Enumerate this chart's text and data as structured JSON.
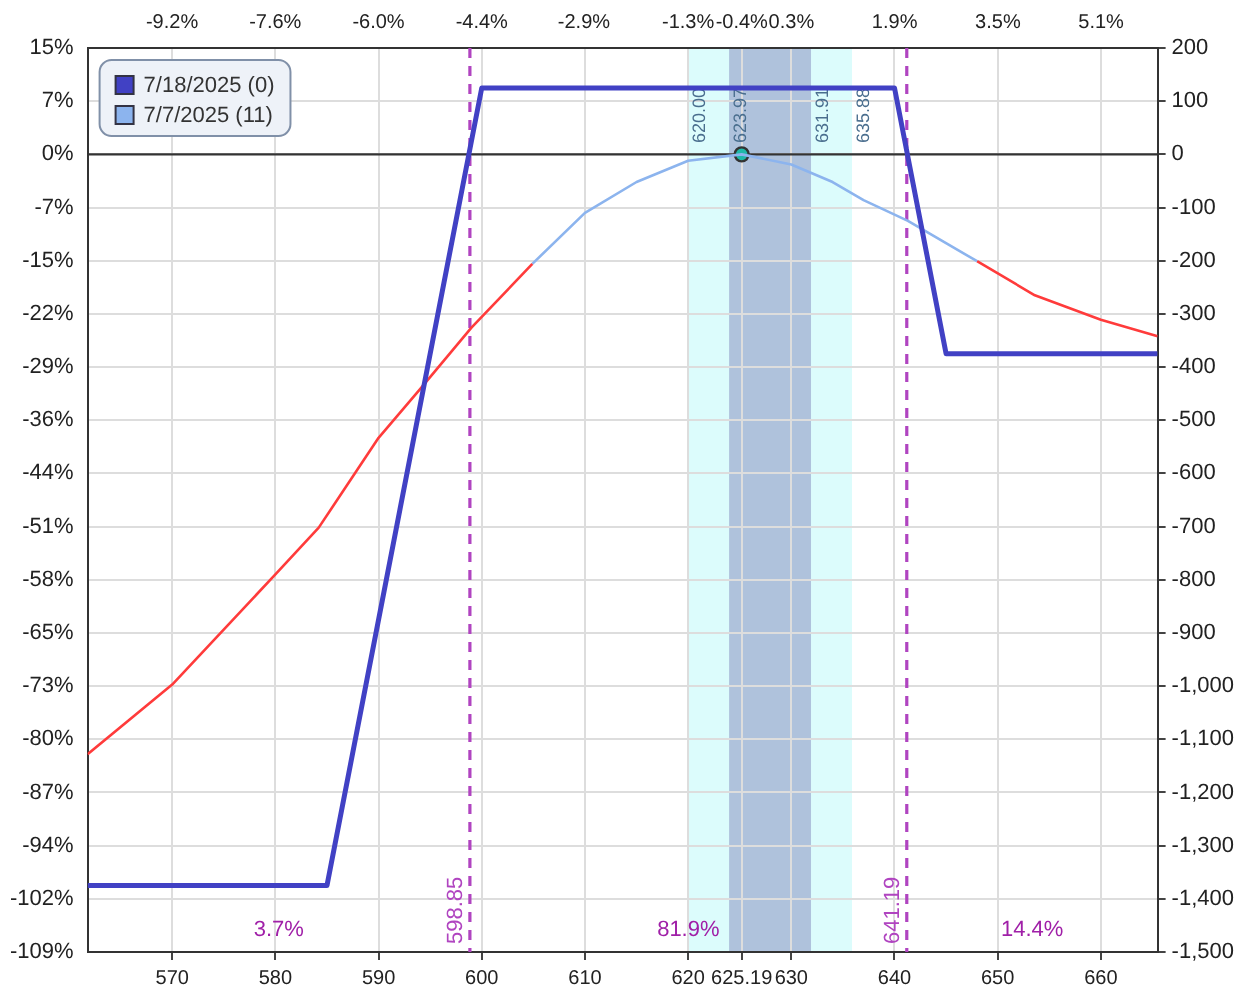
{
  "chart_data": {
    "type": "line",
    "xlim": [
      561.8,
      665.5
    ],
    "xticks": [
      570,
      580,
      590,
      600,
      610,
      620,
      {
        "value": 625.19,
        "label": "625.19"
      },
      630,
      640,
      650,
      660
    ],
    "x2lim": [
      -10.5,
      5.97
    ],
    "x2ticks": [
      {
        "value": -9.2,
        "label": "-9.2%"
      },
      {
        "value": -7.611,
        "label": "-7.6%"
      },
      {
        "value": -6.022,
        "label": "-6.0%"
      },
      {
        "value": -4.433,
        "label": "-4.4%"
      },
      {
        "value": -2.86,
        "label": "-2.9%"
      },
      {
        "value": -1.256,
        "label": "-1.3%"
      },
      {
        "value": -0.431,
        "label": "-0.4%"
      },
      {
        "value": 0.333,
        "label": "0.3%"
      },
      {
        "value": 1.922,
        "label": "1.9%"
      },
      {
        "value": 3.511,
        "label": "3.5%"
      },
      {
        "value": 5.1,
        "label": "5.1%"
      }
    ],
    "ylim": [
      -109,
      14.53
    ],
    "yticks": [
      {
        "value": 14.53,
        "label": "15%"
      },
      {
        "value": 7.27,
        "label": "7%"
      },
      {
        "value": 0,
        "label": "0%"
      },
      {
        "value": -7.27,
        "label": "-7%"
      },
      {
        "value": -14.53,
        "label": "-15%"
      },
      {
        "value": -21.8,
        "label": "-22%"
      },
      {
        "value": -29.07,
        "label": "-29%"
      },
      {
        "value": -36.33,
        "label": "-36%"
      },
      {
        "value": -43.6,
        "label": "-44%"
      },
      {
        "value": -50.87,
        "label": "-51%"
      },
      {
        "value": -58.13,
        "label": "-58%"
      },
      {
        "value": -65.4,
        "label": "-65%"
      },
      {
        "value": -72.67,
        "label": "-73%"
      },
      {
        "value": -79.93,
        "label": "-80%"
      },
      {
        "value": -87.2,
        "label": "-87%"
      },
      {
        "value": -94.47,
        "label": "-94%"
      },
      {
        "value": -101.73,
        "label": "-102%"
      },
      {
        "value": -109,
        "label": "-109%"
      }
    ],
    "y2lim": [
      -1500,
      200
    ],
    "y2ticks": [
      200,
      100,
      0,
      -100,
      -200,
      -300,
      -400,
      -500,
      -600,
      -700,
      -800,
      -900,
      {
        "value": -1000,
        "label": "-1,000"
      },
      {
        "value": -1100,
        "label": "-1,100"
      },
      {
        "value": -1200,
        "label": "-1,200"
      },
      {
        "value": -1300,
        "label": "-1,300"
      },
      {
        "value": -1400,
        "label": "-1,400"
      },
      {
        "value": -1500,
        "label": "-1,500"
      }
    ],
    "grid": true,
    "legend": "top left",
    "line_style": "solid",
    "series": [
      {
        "name": "7/18/2025 (0)",
        "color": "#4141c4",
        "axis": "y2",
        "x": [
          561.8,
          585,
          600,
          640,
          645,
          665.5
        ],
        "values": [
          -1375,
          -1375,
          125,
          125,
          -375,
          -375
        ],
        "marker": "none"
      },
      {
        "color": "#ff3b3b",
        "axis": "y2",
        "x": [
          561.8,
          570,
          580,
          584.2,
          590,
          594,
          599,
          604.9
        ],
        "values": [
          -1128,
          -997,
          -790,
          -702,
          -533,
          -442,
          -326,
          -206
        ],
        "marker": "none"
      },
      {
        "name": "7/7/2025 (11)",
        "color": "#8cb4ee",
        "axis": "y2",
        "x": [
          604.9,
          610,
          615,
          620,
          625.19,
          630,
          634,
          637,
          641.3,
          648
        ],
        "values": [
          -206,
          -110,
          -52,
          -12,
          0,
          -19,
          -52,
          -86,
          -125,
          -201
        ],
        "marker": "none"
      },
      {
        "color": "#ff3b3b",
        "axis": "y2",
        "x": [
          648,
          653.6,
          660,
          665.5
        ],
        "values": [
          -201,
          -265,
          -311,
          -342
        ],
        "marker": "none"
      },
      {
        "type": "scatter",
        "color": "#1fb8a8",
        "axis": "y2",
        "x": [
          625.19
        ],
        "values": [
          0
        ],
        "marker": "circle"
      }
    ],
    "ref_lines": [
      {
        "axis": "y2",
        "value": 0,
        "color": "#333333",
        "line_style": "solid"
      },
      {
        "axis": "x",
        "value": 598.85,
        "label": "598.85",
        "color": "#b044c0",
        "line_style": "dashed"
      },
      {
        "axis": "x",
        "value": 641.19,
        "label": "641.19",
        "color": "#b044c0",
        "line_style": "dashed"
      }
    ],
    "bands": [
      {
        "axis": "x",
        "from": 620,
        "to": 635.88,
        "color": "#dcfcfc"
      },
      {
        "axis": "x",
        "from": 623.97,
        "to": 631.91,
        "color": "#afc2dc"
      }
    ],
    "annotations": [
      {
        "text": "620.00",
        "x": 620,
        "y": 5.3
      },
      {
        "text": "623.97",
        "x": 623.97,
        "y": 5.3
      },
      {
        "text": "631.91",
        "x": 631.91,
        "y": 5.3
      },
      {
        "text": "635.88",
        "x": 635.88,
        "y": 5.3
      },
      "3.7%",
      "81.9%",
      "14.4%"
    ]
  }
}
